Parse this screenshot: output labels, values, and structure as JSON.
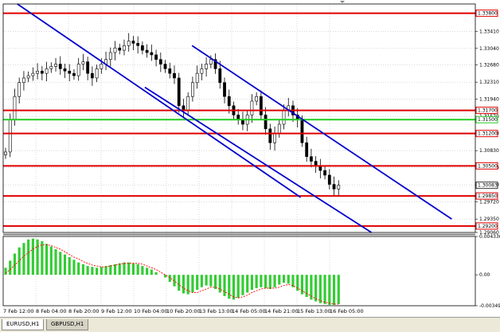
{
  "chart_data": [
    {
      "type": "candlestick",
      "symbol": "EURUSD",
      "timeframe": "H1",
      "ylim": [
        1.2906,
        1.34
      ],
      "y_ticks": [
        "1.33410",
        "1.33040",
        "1.32680",
        "1.32310",
        "1.31940",
        "1.31570",
        "1.31200",
        "1.30830",
        "1.30460",
        "1.30090",
        "1.29720",
        "1.29350",
        "1.29060"
      ],
      "horizontal_levels": [
        {
          "value": 1.338,
          "label": "1.33800",
          "color": "#e00000",
          "style": "solid"
        },
        {
          "value": 1.317,
          "label": "1.31700",
          "color": "#e00000",
          "style": "solid"
        },
        {
          "value": 1.315,
          "label": "1.31500",
          "color": "#22cc22",
          "style": "solid"
        },
        {
          "value": 1.312,
          "label": "1.31200",
          "color": "#e00000",
          "style": "solid"
        },
        {
          "value": 1.305,
          "label": "1.30500",
          "color": "#e00000",
          "style": "solid"
        },
        {
          "value": 1.2985,
          "label": "1.29850",
          "color": "#e00000",
          "style": "solid"
        },
        {
          "value": 1.292,
          "label": "1.29200",
          "color": "#e00000",
          "style": "solid"
        }
      ],
      "current_price": {
        "value": 1.3008,
        "label": "1.30083"
      },
      "trend_channels": [
        {
          "name": "lower-channel",
          "color": "#0000cc",
          "from": [
            0.03,
            1.34
          ],
          "to": [
            0.63,
            1.2982
          ]
        },
        {
          "name": "middle-channel",
          "color": "#0000cc",
          "from": [
            0.3,
            1.322
          ],
          "to": [
            0.78,
            1.2906
          ]
        },
        {
          "name": "upper-channel",
          "color": "#0000cc",
          "from": [
            0.4,
            1.331
          ],
          "to": [
            0.95,
            1.2935
          ]
        }
      ],
      "close_series": [
        1.308,
        1.315,
        1.32,
        1.323,
        1.324,
        1.3245,
        1.325,
        1.3255,
        1.325,
        1.326,
        1.3265,
        1.327,
        1.326,
        1.3255,
        1.325,
        1.3245,
        1.327,
        1.3275,
        1.325,
        1.324,
        1.326,
        1.327,
        1.328,
        1.3295,
        1.3305,
        1.33,
        1.331,
        1.332,
        1.3315,
        1.331,
        1.33,
        1.3295,
        1.329,
        1.328,
        1.327,
        1.326,
        1.325,
        1.324,
        1.318,
        1.317,
        1.32,
        1.323,
        1.325,
        1.326,
        1.327,
        1.328,
        1.326,
        1.323,
        1.32,
        1.318,
        1.316,
        1.315,
        1.314,
        1.316,
        1.319,
        1.32,
        1.316,
        1.313,
        1.31,
        1.312,
        1.314,
        1.317,
        1.318,
        1.316,
        1.315,
        1.31,
        1.307,
        1.306,
        1.305,
        1.304,
        1.303,
        1.301,
        1.3,
        1.3008
      ]
    },
    {
      "type": "histogram",
      "indicator": "MACD",
      "ylim": [
        -0.00349,
        0.004336
      ],
      "y_ticks": [
        "0.004336",
        "0.00",
        "-0.00349"
      ],
      "histogram": [
        0.0008,
        0.0016,
        0.0024,
        0.0031,
        0.0036,
        0.004,
        0.0041,
        0.004,
        0.0038,
        0.0035,
        0.0032,
        0.0029,
        0.0026,
        0.0023,
        0.002,
        0.0017,
        0.0014,
        0.0012,
        0.001,
        0.0009,
        0.0008,
        0.0009,
        0.001,
        0.0011,
        0.0012,
        0.0013,
        0.0014,
        0.0014,
        0.0013,
        0.0012,
        0.001,
        0.0008,
        0.0006,
        0.0003,
        0.0,
        -0.0003,
        -0.0008,
        -0.0013,
        -0.0018,
        -0.0021,
        -0.0022,
        -0.002,
        -0.0017,
        -0.0014,
        -0.0012,
        -0.0013,
        -0.0016,
        -0.002,
        -0.0024,
        -0.0027,
        -0.0028,
        -0.0026,
        -0.0023,
        -0.002,
        -0.0017,
        -0.0015,
        -0.0014,
        -0.0015,
        -0.0016,
        -0.0014,
        -0.0011,
        -0.0009,
        -0.001,
        -0.0014,
        -0.0018,
        -0.0022,
        -0.0025,
        -0.0028,
        -0.003,
        -0.0032,
        -0.0033,
        -0.0034,
        -0.0034,
        -0.0033
      ],
      "signal": [
        0.0002,
        0.0006,
        0.0011,
        0.0016,
        0.0021,
        0.0025,
        0.0029,
        0.0032,
        0.0034,
        0.0034,
        0.0033,
        0.0031,
        0.0029,
        0.0026,
        0.0023,
        0.002,
        0.0018,
        0.0015,
        0.0013,
        0.0011,
        0.001,
        0.0009,
        0.0009,
        0.001,
        0.0011,
        0.0012,
        0.0013,
        0.0013,
        0.0013,
        0.0013,
        0.0012,
        0.001,
        0.0008,
        0.0006,
        0.0003,
        0.0,
        -0.0003,
        -0.0007,
        -0.0011,
        -0.0015,
        -0.0018,
        -0.002,
        -0.002,
        -0.0018,
        -0.0016,
        -0.0014,
        -0.0014,
        -0.0016,
        -0.0019,
        -0.0022,
        -0.0025,
        -0.0026,
        -0.0025,
        -0.0023,
        -0.002,
        -0.0018,
        -0.0016,
        -0.0015,
        -0.0015,
        -0.0015,
        -0.0014,
        -0.0012,
        -0.0011,
        -0.0012,
        -0.0015,
        -0.0018,
        -0.0021,
        -0.0024,
        -0.0027,
        -0.0029,
        -0.0031,
        -0.0032,
        -0.0033,
        -0.0033
      ]
    }
  ],
  "x_axis_labels": [
    "7 Feb 12:00",
    "8 Feb 04:00",
    "8 Feb 20:00",
    "9 Feb 12:00",
    "10 Feb 04:00",
    "10 Feb 20:00",
    "13 Feb 13:00",
    "14 Feb 05:00",
    "14 Feb 21:00",
    "15 Feb 13:00",
    "16 Feb 05:00"
  ],
  "colors": {
    "candle": "#000000",
    "histogram": "#33cc33",
    "signal": "#ff0000",
    "grid": "#c0c0c0",
    "price_tag_bg": "#ffffff",
    "level_tag_bg": "#ffffff"
  },
  "tabs": [
    {
      "label": "EURUSD,H1",
      "active": true
    },
    {
      "label": "GBPUSD,H1",
      "active": false
    }
  ]
}
